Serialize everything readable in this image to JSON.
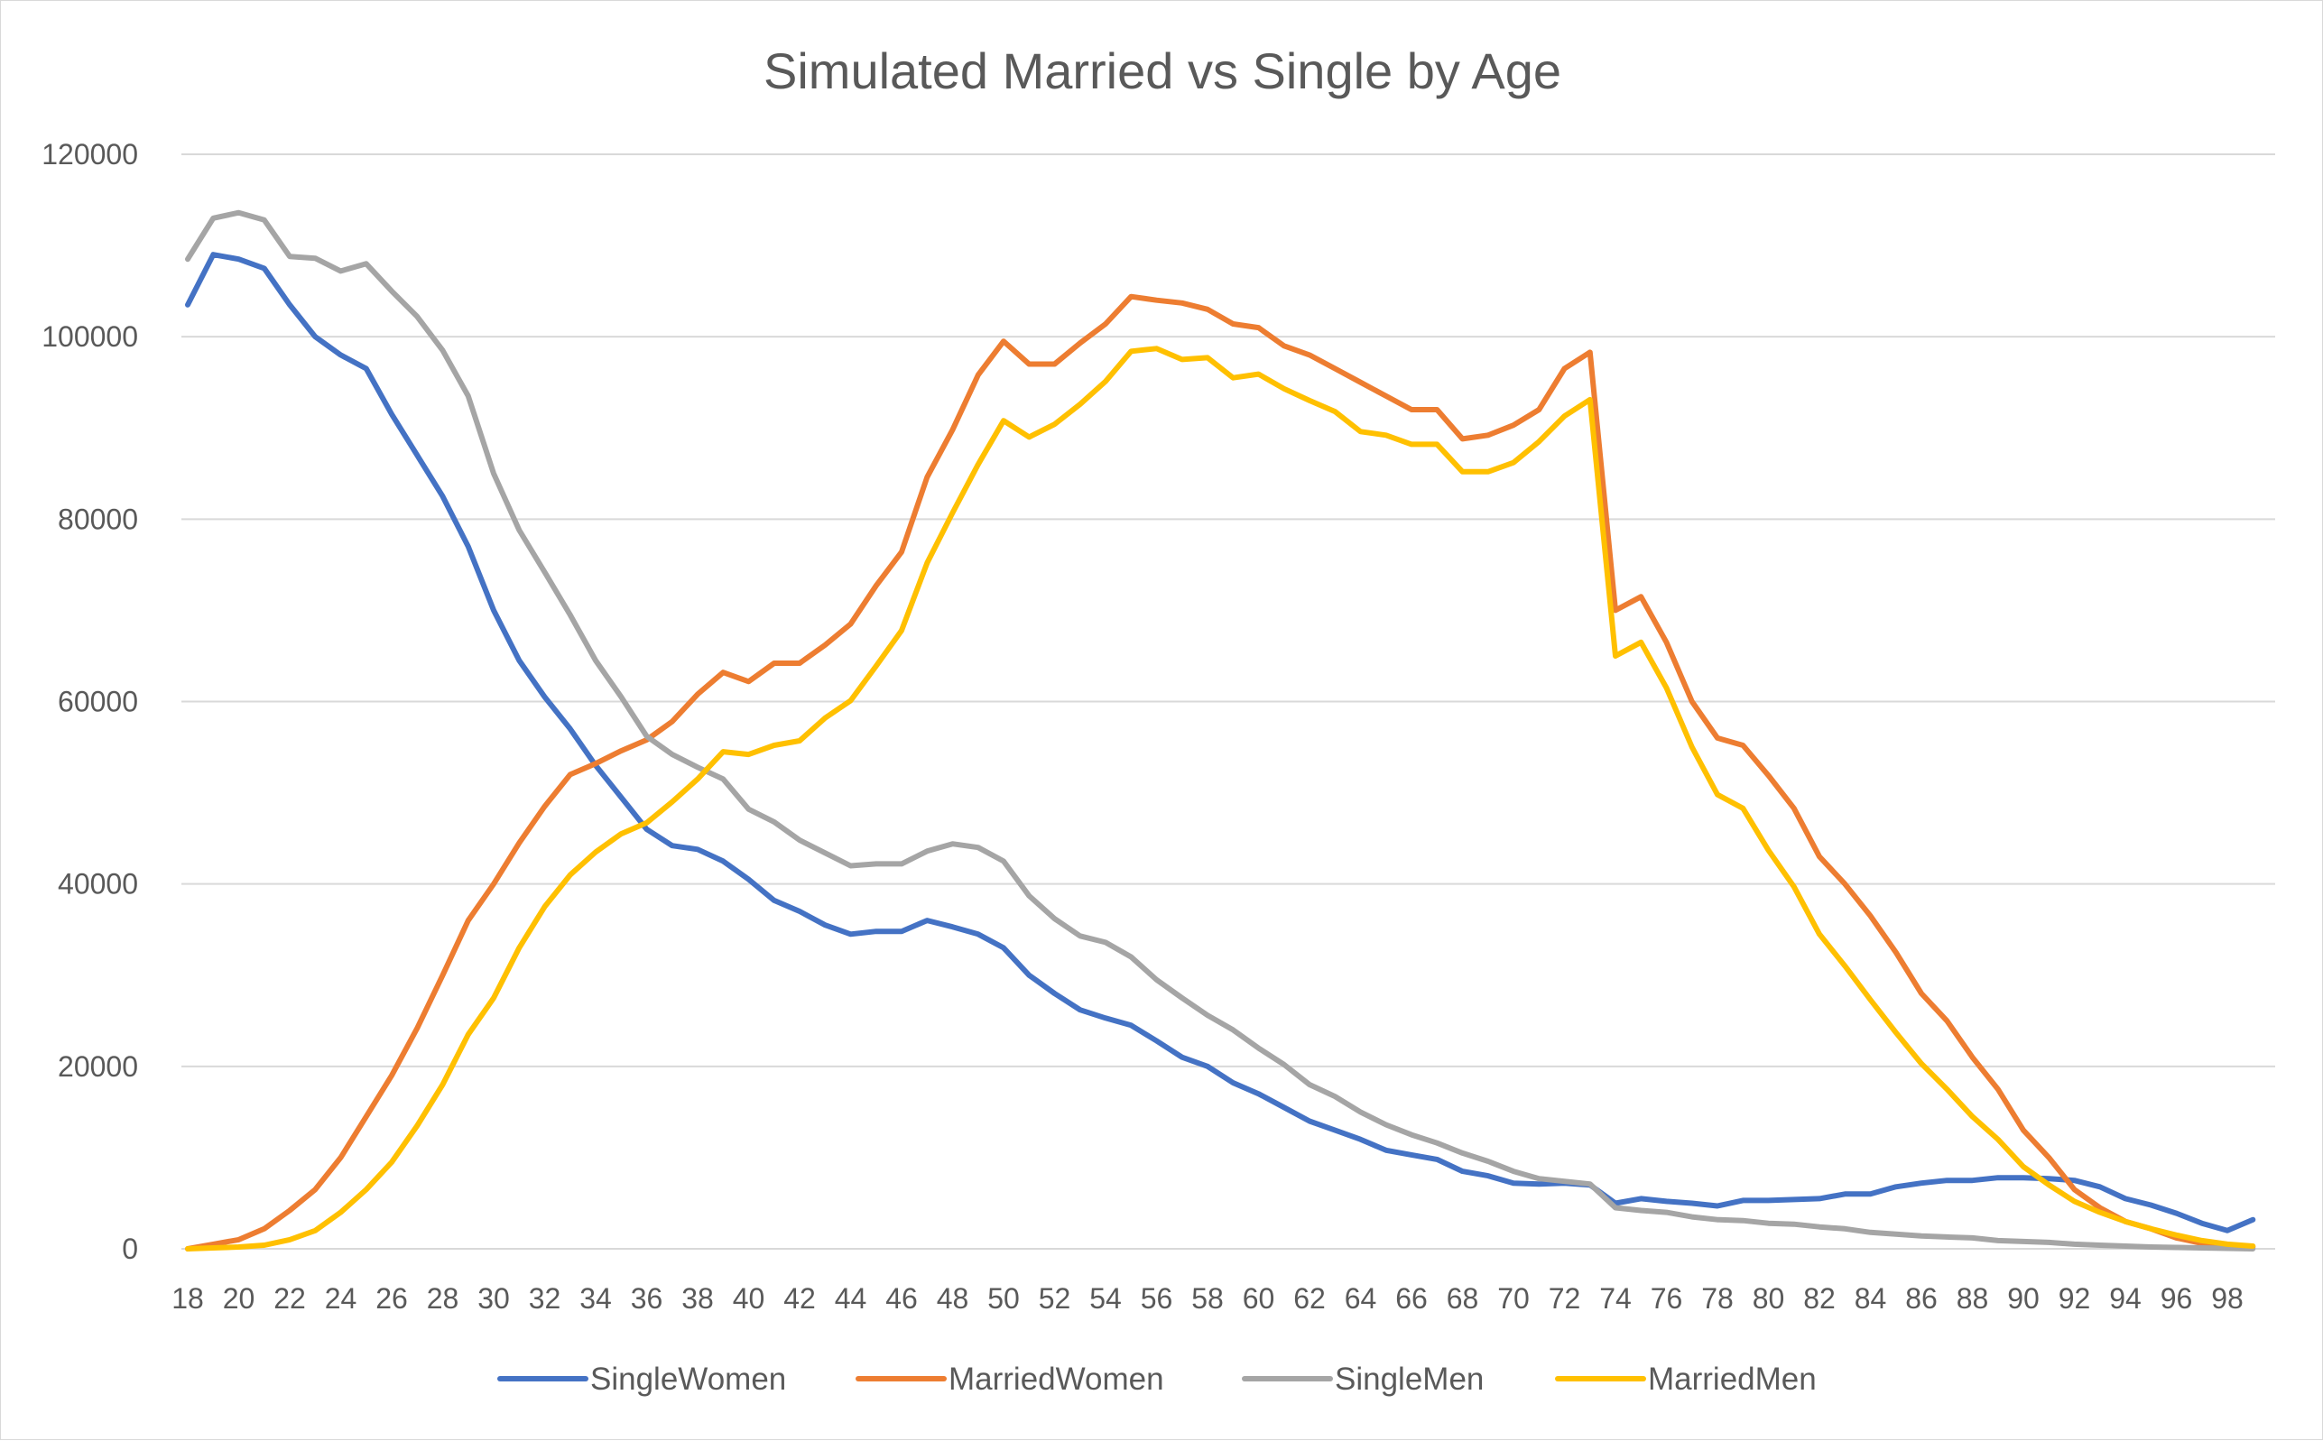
{
  "chart_data": {
    "type": "line",
    "title": "Simulated Married vs Single by Age",
    "xlabel": "",
    "ylabel": "",
    "ylim": [
      0,
      120000
    ],
    "yticks": [
      "0",
      "20000",
      "40000",
      "60000",
      "80000",
      "100000",
      "120000"
    ],
    "xtick_labels": [
      "18",
      "20",
      "22",
      "24",
      "26",
      "28",
      "30",
      "32",
      "34",
      "36",
      "38",
      "40",
      "42",
      "44",
      "46",
      "48",
      "50",
      "52",
      "54",
      "56",
      "58",
      "60",
      "62",
      "64",
      "66",
      "68",
      "70",
      "72",
      "74",
      "76",
      "78",
      "80",
      "82",
      "84",
      "86",
      "88",
      "90",
      "92",
      "94",
      "96",
      "98"
    ],
    "x": [
      18,
      19,
      20,
      21,
      22,
      23,
      24,
      25,
      26,
      27,
      28,
      29,
      30,
      31,
      32,
      33,
      34,
      35,
      36,
      37,
      38,
      39,
      40,
      41,
      42,
      43,
      44,
      45,
      46,
      47,
      48,
      49,
      50,
      51,
      52,
      53,
      54,
      55,
      56,
      57,
      58,
      59,
      60,
      61,
      62,
      63,
      64,
      65,
      66,
      67,
      68,
      69,
      70,
      71,
      72,
      73,
      74,
      75,
      76,
      77,
      78,
      79,
      80,
      81,
      82,
      83,
      84,
      85,
      86,
      87,
      88,
      89,
      90,
      91,
      92,
      93,
      94,
      95,
      96,
      97,
      98,
      99
    ],
    "grid": true,
    "legend_position": "bottom",
    "series": [
      {
        "name": "SingleWomen",
        "color": "#4472C4",
        "values": [
          103500,
          109000,
          108500,
          107500,
          103500,
          100000,
          98000,
          96500,
          91500,
          87000,
          82500,
          77000,
          70000,
          64500,
          60500,
          57000,
          53000,
          49500,
          46000,
          44200,
          43800,
          42500,
          40500,
          38200,
          37000,
          35500,
          34500,
          34800,
          34800,
          36000,
          35300,
          34500,
          33000,
          30000,
          28000,
          26200,
          25300,
          24500,
          22800,
          21000,
          20000,
          18200,
          17000,
          15500,
          14000,
          13000,
          12000,
          10800,
          10300,
          9800,
          8500,
          8000,
          7200,
          7100,
          7200,
          7000,
          5000,
          5500,
          5200,
          5000,
          4700,
          5300,
          5300,
          5400,
          5500,
          6000,
          6000,
          6800,
          7200,
          7500,
          7500,
          7800,
          7800,
          7700,
          7500,
          6800,
          5500,
          4800,
          3900,
          2800,
          2000,
          3200
        ]
      },
      {
        "name": "MarriedWomen",
        "color": "#ED7D31",
        "values": [
          0,
          500,
          1000,
          2200,
          4200,
          6500,
          10000,
          14500,
          19000,
          24200,
          30000,
          36000,
          40000,
          44500,
          48500,
          52000,
          53200,
          54600,
          55800,
          57800,
          60800,
          63200,
          62200,
          64200,
          64200,
          66200,
          68500,
          72700,
          76400,
          84600,
          89800,
          95800,
          99500,
          97000,
          97000,
          99300,
          101400,
          104400,
          104000,
          103700,
          103000,
          101400,
          101000,
          99000,
          98000,
          96500,
          95000,
          93500,
          92000,
          92000,
          88800,
          89200,
          90300,
          92000,
          96500,
          98300,
          70000,
          71500,
          66500,
          60000,
          56000,
          55200,
          51900,
          48300,
          43000,
          40000,
          36500,
          32500,
          28000,
          25000,
          21000,
          17500,
          13000,
          10000,
          6500,
          4500,
          3000,
          2200,
          1200,
          600,
          300,
          200
        ]
      },
      {
        "name": "SingleMen",
        "color": "#A5A5A5",
        "values": [
          108500,
          113000,
          113600,
          112800,
          108800,
          108600,
          107200,
          108000,
          105000,
          102200,
          98500,
          93500,
          85000,
          78800,
          74200,
          69500,
          64500,
          60500,
          56200,
          54200,
          52800,
          51500,
          48200,
          46800,
          44800,
          43400,
          42000,
          42200,
          42200,
          43600,
          44400,
          44000,
          42500,
          38700,
          36200,
          34300,
          33600,
          32000,
          29500,
          27500,
          25600,
          24000,
          22000,
          20200,
          18000,
          16700,
          15000,
          13600,
          12500,
          11600,
          10500,
          9600,
          8500,
          7700,
          7400,
          7100,
          4500,
          4200,
          4000,
          3500,
          3200,
          3100,
          2800,
          2700,
          2400,
          2200,
          1800,
          1600,
          1400,
          1300,
          1200,
          900,
          800,
          700,
          500,
          400,
          300,
          200,
          150,
          100,
          50,
          0
        ]
      },
      {
        "name": "MarriedMen",
        "color": "#FFC000",
        "values": [
          0,
          100,
          200,
          400,
          1000,
          2000,
          4000,
          6500,
          9500,
          13500,
          18000,
          23500,
          27500,
          33000,
          37500,
          41000,
          43500,
          45500,
          46700,
          49000,
          51500,
          54500,
          54200,
          55200,
          55700,
          58200,
          60100,
          63900,
          67800,
          75200,
          80700,
          86000,
          90800,
          89000,
          90400,
          92600,
          95100,
          98400,
          98700,
          97500,
          97700,
          95500,
          95900,
          94300,
          93000,
          91800,
          89600,
          89200,
          88200,
          88200,
          85200,
          85200,
          86200,
          88500,
          91300,
          93100,
          65000,
          66500,
          61500,
          55000,
          49800,
          48300,
          43700,
          39700,
          34500,
          31000,
          27300,
          23700,
          20300,
          17500,
          14500,
          12000,
          9000,
          7000,
          5200,
          4000,
          3000,
          2200,
          1500,
          900,
          500,
          300
        ]
      }
    ]
  }
}
